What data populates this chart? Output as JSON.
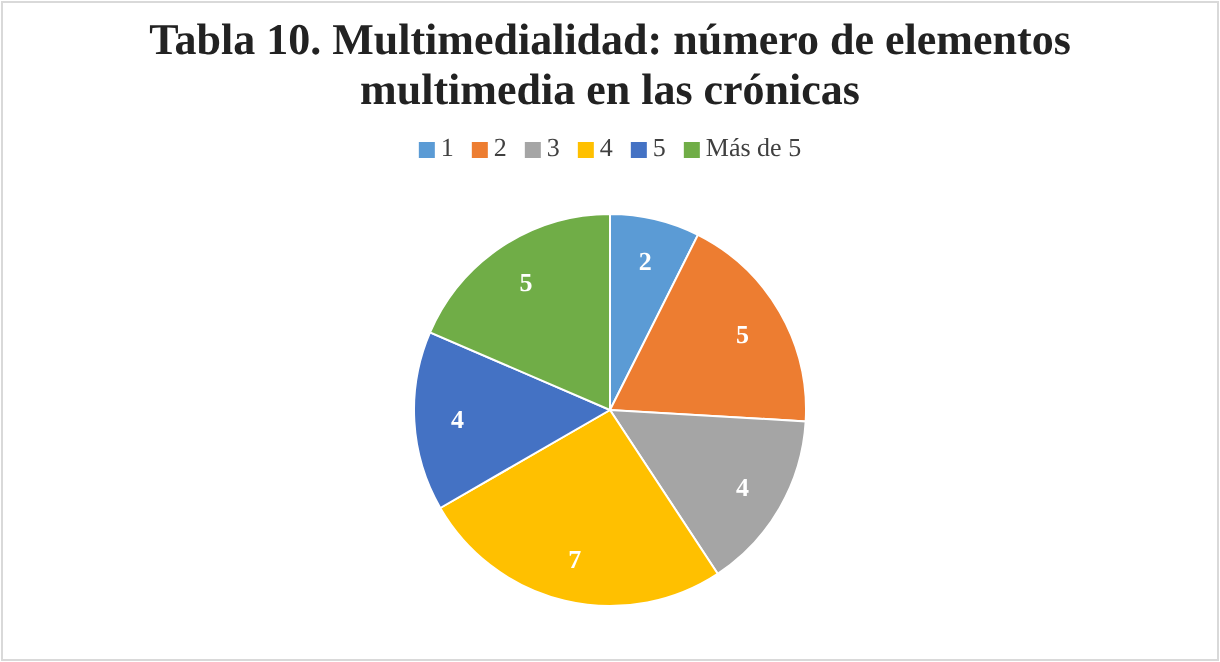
{
  "chart_data": {
    "type": "pie",
    "title": "Tabla 10. Multimedialidad: número de elementos multimedia en las crónicas",
    "categories": [
      "1",
      "2",
      "3",
      "4",
      "5",
      "Más de 5"
    ],
    "values": [
      2,
      5,
      4,
      7,
      4,
      5
    ],
    "colors": [
      "#5b9bd5",
      "#ed7d31",
      "#a5a5a5",
      "#ffc000",
      "#4472c4",
      "#70ad47"
    ],
    "data_labels": true,
    "legend": "top"
  }
}
